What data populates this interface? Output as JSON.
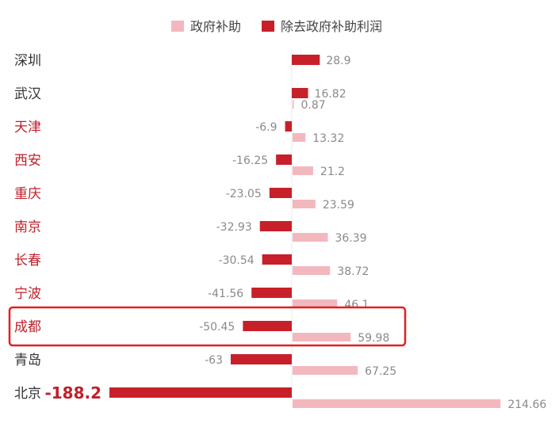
{
  "chart_data": {
    "type": "bar",
    "orientation": "horizontal",
    "categories": [
      "深圳",
      "武汉",
      "天津",
      "西安",
      "重庆",
      "南京",
      "长春",
      "宁波",
      "成都",
      "青岛",
      "北京"
    ],
    "series": [
      {
        "name": "除去政府补助利润",
        "color": "#c8202a",
        "values": [
          28.9,
          16.82,
          -6.9,
          -16.25,
          -23.05,
          -32.93,
          -30.54,
          -41.56,
          -50.45,
          -63,
          -188.2
        ]
      },
      {
        "name": "政府补助",
        "color": "#f2b8be",
        "values": [
          null,
          0.87,
          13.32,
          21.2,
          23.59,
          36.39,
          38.72,
          46.1,
          59.98,
          67.25,
          214.66
        ]
      }
    ],
    "value_labels": {
      "profit": [
        "28.9",
        "16.82",
        "-6.9",
        "-16.25",
        "-23.05",
        "-32.93",
        "-30.54",
        "-41.56",
        "-50.45",
        "-63",
        "-188.2"
      ],
      "subsidy": [
        "",
        "0.87",
        "13.32",
        "21.2",
        "23.59",
        "36.39",
        "38.72",
        "46.1",
        "59.98",
        "67.25",
        "214.66"
      ]
    },
    "legend": {
      "placement": "top",
      "items": [
        {
          "label": "政府补助",
          "color": "#f2b8be"
        },
        {
          "label": "除去政府补助利润",
          "color": "#c8202a"
        }
      ]
    },
    "category_label_colors": {
      "深圳": "#333333",
      "武汉": "#333333",
      "天津": "#c0202a",
      "西安": "#c0202a",
      "重庆": "#c0202a",
      "南京": "#c0202a",
      "长春": "#c0202a",
      "宁波": "#c0202a",
      "成都": "#c0202a",
      "青岛": "#333333",
      "北京": "#333333"
    },
    "highlighted_category": "成都",
    "highlight_color": "#e02020",
    "xlim": [
      -200,
      230
    ],
    "title": "",
    "xlabel": "",
    "ylabel": "",
    "grid": false
  }
}
